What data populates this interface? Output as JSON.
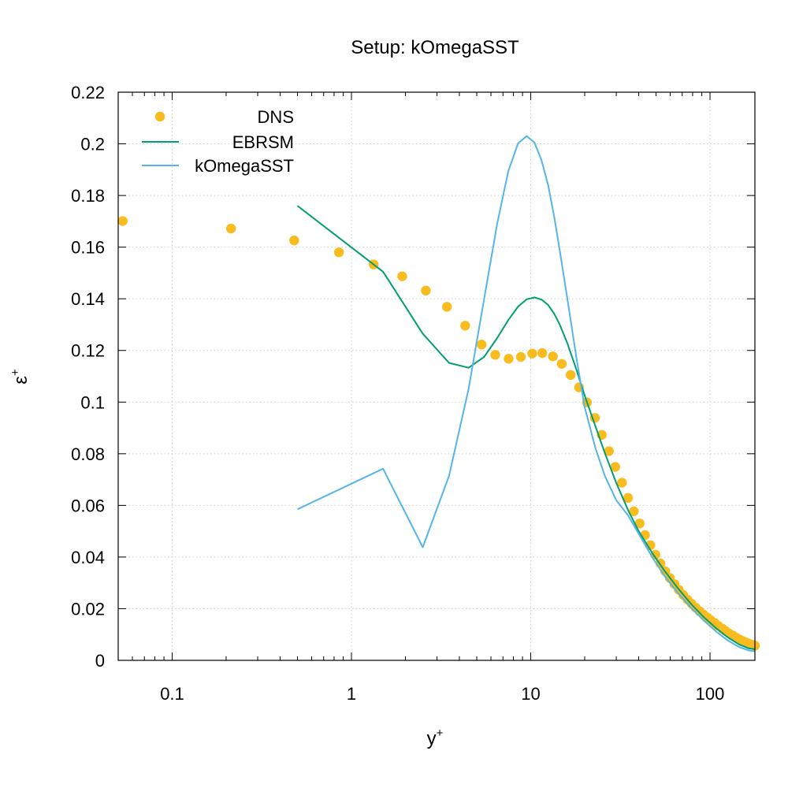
{
  "chart_data": {
    "type": "scatter",
    "title": "Setup: kOmegaSST",
    "xlabel": "y",
    "xlabel_sup": "+",
    "ylabel": "ε",
    "ylabel_sup": "+",
    "xscale": "log",
    "xlim": [
      0.05,
      178
    ],
    "ylim": [
      0,
      0.22
    ],
    "grid": true,
    "legend_position": "top-left",
    "x_ticks": [
      {
        "value": 0.1,
        "label": "0.1"
      },
      {
        "value": 1,
        "label": "1"
      },
      {
        "value": 10,
        "label": "10"
      },
      {
        "value": 100,
        "label": "100"
      }
    ],
    "y_ticks": [
      {
        "value": 0,
        "label": "0"
      },
      {
        "value": 0.02,
        "label": "0.02"
      },
      {
        "value": 0.04,
        "label": "0.04"
      },
      {
        "value": 0.06,
        "label": "0.06"
      },
      {
        "value": 0.08,
        "label": "0.08"
      },
      {
        "value": 0.1,
        "label": "0.1"
      },
      {
        "value": 0.12,
        "label": "0.12"
      },
      {
        "value": 0.14,
        "label": "0.14"
      },
      {
        "value": 0.16,
        "label": "0.16"
      },
      {
        "value": 0.18,
        "label": "0.18"
      },
      {
        "value": 0.2,
        "label": "0.2"
      },
      {
        "value": 0.22,
        "label": "0.22"
      }
    ],
    "series": [
      {
        "name": "DNS",
        "style": "points",
        "color": "#f9bc1e",
        "x": [
          0.053,
          0.213,
          0.479,
          0.852,
          1.33,
          1.92,
          2.6,
          3.41,
          4.31,
          5.32,
          6.34,
          7.53,
          8.81,
          10.2,
          11.6,
          13.3,
          14.9,
          16.7,
          18.6,
          20.6,
          22.8,
          24.9,
          27.3,
          29.6,
          32.3,
          34.9,
          37.6,
          40.5,
          43.4,
          46.5,
          49.6,
          52.9,
          56.3,
          59.7,
          63.4,
          67.0,
          70.9,
          74.9,
          79.0,
          83.2,
          87.5,
          92.0,
          96.7,
          101,
          106,
          111,
          117,
          122,
          128,
          134,
          140,
          146,
          152,
          159,
          166,
          172,
          178
        ],
        "y": [
          0.1701,
          0.1672,
          0.1626,
          0.158,
          0.1533,
          0.1487,
          0.1432,
          0.1369,
          0.1296,
          0.1223,
          0.1183,
          0.1168,
          0.1175,
          0.1188,
          0.119,
          0.1177,
          0.1148,
          0.1105,
          0.1057,
          0.0999,
          0.0939,
          0.0873,
          0.081,
          0.0749,
          0.0688,
          0.0629,
          0.0577,
          0.053,
          0.0485,
          0.0446,
          0.0409,
          0.0375,
          0.0345,
          0.0319,
          0.0295,
          0.0273,
          0.0253,
          0.0235,
          0.0219,
          0.0204,
          0.019,
          0.0177,
          0.0166,
          0.0155,
          0.0145,
          0.0134,
          0.0123,
          0.0114,
          0.0104,
          0.0096,
          0.0088,
          0.0081,
          0.0075,
          0.0069,
          0.0064,
          0.006,
          0.0057
        ]
      },
      {
        "name": "EBRSM",
        "style": "line",
        "color": "#009e73",
        "x": [
          0.5,
          1.5,
          2.5,
          3.5,
          4.5,
          5.5,
          6.5,
          7.5,
          8.5,
          9.5,
          10.5,
          11.5,
          12.5,
          13.5,
          14.5,
          16,
          18,
          20,
          23,
          26,
          30,
          35,
          40,
          48,
          56,
          66,
          78,
          92,
          108,
          125,
          145,
          165,
          178
        ],
        "y": [
          0.176,
          0.1505,
          0.1265,
          0.1152,
          0.1133,
          0.1175,
          0.1248,
          0.1318,
          0.137,
          0.1398,
          0.1405,
          0.1397,
          0.1376,
          0.1343,
          0.1301,
          0.1228,
          0.1125,
          0.1025,
          0.0905,
          0.08,
          0.0687,
          0.058,
          0.05,
          0.0412,
          0.0345,
          0.028,
          0.022,
          0.0168,
          0.0125,
          0.009,
          0.0062,
          0.0046,
          0.0043
        ]
      },
      {
        "name": "kOmegaSST",
        "style": "line",
        "color": "#56b4e9",
        "x": [
          0.5,
          1.5,
          2.5,
          3.5,
          4.5,
          5.5,
          6.5,
          7.5,
          8.5,
          9.5,
          10.5,
          11.5,
          12.5,
          13.5,
          14.5,
          16,
          18,
          20,
          23,
          26,
          30,
          35,
          40,
          48,
          56,
          66,
          78,
          92,
          108,
          125,
          145,
          165,
          178
        ],
        "y": [
          0.0585,
          0.0742,
          0.0438,
          0.0714,
          0.105,
          0.14,
          0.169,
          0.1895,
          0.2002,
          0.203,
          0.2005,
          0.1935,
          0.184,
          0.172,
          0.159,
          0.14,
          0.117,
          0.098,
          0.082,
          0.0712,
          0.062,
          0.056,
          0.049,
          0.0395,
          0.0325,
          0.0262,
          0.0205,
          0.0155,
          0.0112,
          0.0078,
          0.0052,
          0.0038,
          0.0035
        ]
      }
    ]
  }
}
